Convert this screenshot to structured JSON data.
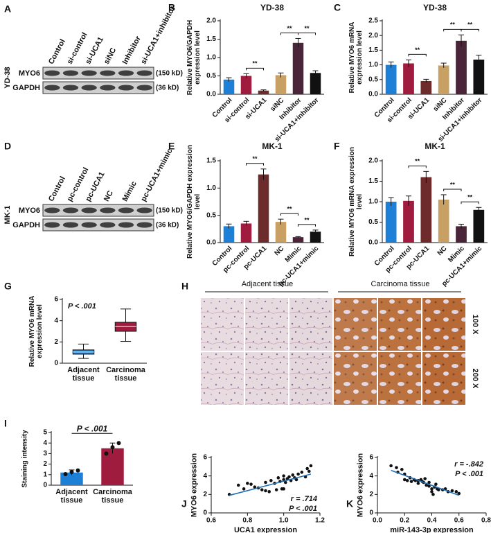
{
  "chart_data": [
    {
      "type": "blot",
      "label": "A",
      "cell_line": "YD-38",
      "lanes": [
        "Control",
        "si-control",
        "si-UCA1",
        "siNC",
        "Inhibitor",
        "si-UCA1+inhibitor"
      ],
      "rows": [
        {
          "name": "MYO6",
          "size": "(150 kD)"
        },
        {
          "name": "GAPDH",
          "size": "(36 kD)"
        }
      ]
    },
    {
      "type": "bar",
      "label": "B",
      "title": "YD-38",
      "ylabel": "Relative MYO6/GAPDH expression  level",
      "categories": [
        "Control",
        "si-control",
        "si-UCA1",
        "siNC",
        "Inhibitor",
        "si-UCA1+inhibitor"
      ],
      "values": [
        0.4,
        0.5,
        0.1,
        0.52,
        1.4,
        0.58
      ],
      "errors": [
        0.05,
        0.06,
        0.02,
        0.06,
        0.12,
        0.06
      ],
      "colors": [
        "#1e7fd6",
        "#a01c3e",
        "#6e2b2b",
        "#c8a064",
        "#4a2438",
        "#111111"
      ],
      "ylim": [
        0,
        2
      ],
      "yticks": [
        {
          "value": 0,
          "label": "0.0"
        },
        0.5,
        {
          "value": 1,
          "label": "1.0"
        },
        1.5,
        {
          "value": 2,
          "label": "2.0"
        }
      ],
      "significance": [
        {
          "between": [
            "si-control",
            "si-UCA1"
          ],
          "label": "**"
        },
        {
          "between": [
            "siNC",
            "Inhibitor"
          ],
          "label": "**"
        },
        {
          "between": [
            "Inhibitor",
            "si-UCA1+inhibitor"
          ],
          "label": "**"
        }
      ]
    },
    {
      "type": "bar",
      "label": "C",
      "title": "YD-38",
      "ylabel": "Relative MYO6 mRNA expression level",
      "categories": [
        "Control",
        "si-control",
        "si-UCA1",
        "siNC",
        "Inhibitor",
        "si-UCA1+inhibitor"
      ],
      "values": [
        1.0,
        1.05,
        0.45,
        0.98,
        1.82,
        1.18
      ],
      "errors": [
        0.1,
        0.12,
        0.06,
        0.08,
        0.2,
        0.15
      ],
      "colors": [
        "#1e7fd6",
        "#a01c3e",
        "#6e2b2b",
        "#c8a064",
        "#4a2438",
        "#111111"
      ],
      "ylim": [
        0,
        2.5
      ],
      "yticks": [
        {
          "value": 0,
          "label": "0.0"
        },
        0.5,
        {
          "value": 1,
          "label": "1.0"
        },
        1.5,
        {
          "value": 2,
          "label": "2.0"
        },
        2.5
      ],
      "significance": [
        {
          "between": [
            "si-control",
            "si-UCA1"
          ],
          "label": "**"
        },
        {
          "between": [
            "siNC",
            "Inhibitor"
          ],
          "label": "**"
        },
        {
          "between": [
            "Inhibitor",
            "si-UCA1+inhibitor"
          ],
          "label": "**"
        }
      ]
    },
    {
      "type": "blot",
      "label": "D",
      "cell_line": "MK-1",
      "lanes": [
        "Control",
        "pc-control",
        "pc-UCA1",
        "NC",
        "Mimic",
        "pc-UCA1+mimic"
      ],
      "rows": [
        {
          "name": "MYO6",
          "size": "(150 kD)"
        },
        {
          "name": "GAPDH",
          "size": "(36 kD)"
        }
      ]
    },
    {
      "type": "bar",
      "label": "E",
      "title": "MK-1",
      "ylabel": "Relative MYO6/GAPDH expression level",
      "categories": [
        "Control",
        "pc-control",
        "pc-UCA1",
        "NC",
        "Mimic",
        "pc-UCA1+mimic"
      ],
      "values": [
        0.3,
        0.35,
        1.25,
        0.38,
        0.1,
        0.2
      ],
      "errors": [
        0.04,
        0.04,
        0.1,
        0.05,
        0.01,
        0.03
      ],
      "colors": [
        "#1e7fd6",
        "#a01c3e",
        "#6e2b2b",
        "#c8a064",
        "#4a2438",
        "#111111"
      ],
      "ylim": [
        0,
        1.5
      ],
      "yticks": [
        {
          "value": 0,
          "label": "0.0"
        },
        0.5,
        {
          "value": 1,
          "label": "1.0"
        },
        1.5
      ],
      "significance": [
        {
          "between": [
            "pc-control",
            "pc-UCA1"
          ],
          "label": "**"
        },
        {
          "between": [
            "NC",
            "Mimic"
          ],
          "label": "**"
        },
        {
          "between": [
            "Mimic",
            "pc-UCA1+mimic"
          ],
          "label": "**"
        }
      ]
    },
    {
      "type": "bar",
      "label": "F",
      "title": "MK-1",
      "ylabel": "Relative MYO6 mRNA expression level",
      "categories": [
        "Control",
        "pc-control",
        "pc-UCA1",
        "NC",
        "Mimic",
        "pc-UCA1+mimic"
      ],
      "values": [
        1.0,
        1.02,
        1.6,
        1.05,
        0.4,
        0.8
      ],
      "errors": [
        0.1,
        0.12,
        0.14,
        0.12,
        0.05,
        0.06
      ],
      "colors": [
        "#1e7fd6",
        "#a01c3e",
        "#6e2b2b",
        "#c8a064",
        "#4a2438",
        "#111111"
      ],
      "ylim": [
        0,
        2
      ],
      "yticks": [
        {
          "value": 0,
          "label": "0.0"
        },
        0.5,
        {
          "value": 1,
          "label": "1.0"
        },
        1.5,
        {
          "value": 2,
          "label": "2.0"
        }
      ],
      "significance": [
        {
          "between": [
            "pc-control",
            "pc-UCA1"
          ],
          "label": "**"
        },
        {
          "between": [
            "NC",
            "Mimic"
          ],
          "label": "**"
        },
        {
          "between": [
            "Mimic",
            "pc-UCA1+mimic"
          ],
          "label": "**"
        }
      ]
    },
    {
      "type": "box",
      "label": "G",
      "ylabel": "Relative MYO6 mRNA expression  level",
      "annotations": [
        "P < .001"
      ],
      "categories": [
        "Adjacent tissue",
        "Carcinoma tissue"
      ],
      "colors": [
        "#1e7fd6",
        "#a01c3e"
      ],
      "boxes": [
        {
          "min": 0.45,
          "q1": 0.85,
          "median": 1.05,
          "q3": 1.25,
          "max": 1.8
        },
        {
          "min": 2.05,
          "q1": 3.0,
          "median": 3.45,
          "q3": 3.85,
          "max": 5.1
        }
      ],
      "ylim": [
        0,
        6
      ],
      "yticks": [
        0,
        2,
        4,
        6
      ]
    },
    {
      "type": "images",
      "label": "H",
      "groups": [
        "Adjacent tissue",
        "Carcinoma tissue"
      ],
      "magnifications": [
        "100 X",
        "200 X"
      ]
    },
    {
      "type": "bar",
      "label": "I",
      "ylabel": "Staining intensity",
      "categories": [
        "Adjacent tissue",
        "Carcinoma tissue"
      ],
      "values": [
        1.2,
        3.5
      ],
      "errors": [
        0.25,
        0.5
      ],
      "points": [
        [
          1.05,
          1.25,
          1.4
        ],
        [
          3.0,
          3.6,
          4.0
        ]
      ],
      "colors": [
        "#1e7fd6",
        "#a01c3e"
      ],
      "ylim": [
        0,
        5
      ],
      "yticks": [
        0,
        1,
        2,
        3,
        4,
        5
      ],
      "significance": [
        {
          "between": [
            "Adjacent tissue",
            "Carcinoma tissue"
          ],
          "label": "P < .001"
        }
      ]
    },
    {
      "type": "scatter",
      "label": "J",
      "xlabel": "UCA1 expression",
      "ylabel": "MYO6 expression",
      "annotations": [
        "r = .714",
        "P < .001"
      ],
      "x": [
        0.7,
        0.75,
        0.78,
        0.8,
        0.82,
        0.84,
        0.86,
        0.88,
        0.9,
        0.9,
        0.92,
        0.93,
        0.95,
        0.96,
        0.97,
        0.98,
        1.0,
        1.0,
        1.01,
        1.02,
        1.03,
        1.04,
        1.05,
        1.06,
        1.07,
        1.08,
        1.1,
        1.12,
        1.14,
        1.15,
        1.13,
        1.0,
        0.99
      ],
      "y": [
        2.0,
        3.0,
        2.6,
        3.2,
        3.1,
        2.8,
        2.7,
        2.5,
        2.4,
        3.3,
        2.3,
        3.5,
        3.2,
        2.5,
        3.8,
        3.4,
        3.6,
        4.0,
        3.3,
        3.7,
        3.9,
        3.5,
        4.1,
        3.8,
        3.6,
        4.2,
        4.4,
        3.9,
        4.5,
        5.1,
        4.8,
        2.6,
        2.6
      ],
      "fit": {
        "x": [
          0.7,
          1.15
        ],
        "y": [
          1.9,
          4.2
        ]
      },
      "xlim": [
        0.6,
        1.2
      ],
      "xticks": [
        0.6,
        0.8,
        {
          "value": 1,
          "label": "1.0"
        },
        1.2
      ],
      "ylim": [
        0,
        6
      ],
      "yticks": [
        0,
        2,
        4,
        6
      ]
    },
    {
      "type": "scatter",
      "label": "K",
      "xlabel": "miR-143-3p expression",
      "ylabel": "MYO6 expression",
      "annotations": [
        "r = -.842",
        "P < .001"
      ],
      "x": [
        0.1,
        0.14,
        0.15,
        0.18,
        0.2,
        0.2,
        0.22,
        0.24,
        0.25,
        0.27,
        0.28,
        0.3,
        0.3,
        0.32,
        0.33,
        0.34,
        0.35,
        0.36,
        0.38,
        0.38,
        0.4,
        0.4,
        0.41,
        0.42,
        0.43,
        0.44,
        0.45,
        0.48,
        0.5,
        0.52,
        0.55,
        0.58,
        0.6
      ],
      "y": [
        5.1,
        4.9,
        4.4,
        4.7,
        4.2,
        3.6,
        3.5,
        3.8,
        3.4,
        3.6,
        3.5,
        3.5,
        3.2,
        3.6,
        3.4,
        3.3,
        3.7,
        3.0,
        2.9,
        3.3,
        2.6,
        2.3,
        2.0,
        2.8,
        3.1,
        2.6,
        2.5,
        2.5,
        2.6,
        2.3,
        2.4,
        2.3,
        2.1
      ],
      "fit": {
        "x": [
          0.1,
          0.6
        ],
        "y": [
          4.6,
          1.9
        ]
      },
      "xlim": [
        0,
        0.8
      ],
      "xticks": [
        {
          "value": 0,
          "label": "0.0"
        },
        0.2,
        0.4,
        0.6,
        0.8
      ],
      "ylim": [
        0,
        6
      ],
      "yticks": [
        0,
        2,
        4,
        6
      ]
    }
  ]
}
